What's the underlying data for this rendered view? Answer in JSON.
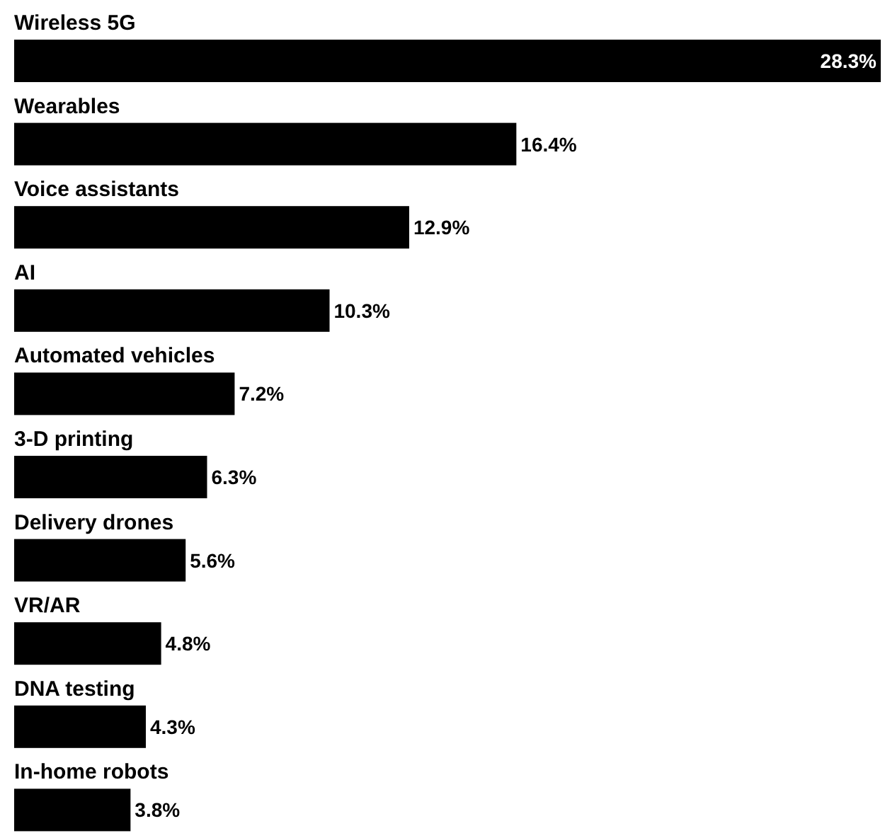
{
  "chart_data": {
    "type": "bar",
    "orientation": "horizontal",
    "categories": [
      "Wireless 5G",
      "Wearables",
      "Voice assistants",
      "AI",
      "Automated vehicles",
      "3-D printing",
      "Delivery drones",
      "VR/AR",
      "DNA testing",
      "In-home robots"
    ],
    "values": [
      28.3,
      16.4,
      12.9,
      10.3,
      7.2,
      6.3,
      5.6,
      4.8,
      4.3,
      3.8
    ],
    "value_labels": [
      "28.3%",
      "16.4%",
      "12.9%",
      "10.3%",
      "7.2%",
      "6.3%",
      "5.6%",
      "4.8%",
      "4.3%",
      "3.8%"
    ],
    "color": "#000000"
  }
}
